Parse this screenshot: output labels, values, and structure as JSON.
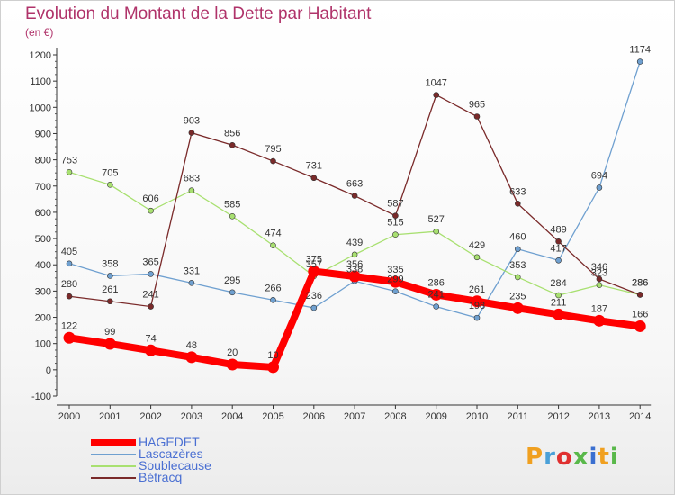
{
  "chart": {
    "title": "Evolution du Montant de la Dette par Habitant",
    "unit": "(en €)"
  },
  "logo": {
    "text": "Proxiti",
    "colors": [
      "#f0a020",
      "#4aa0d8",
      "#e03030",
      "#59b84a",
      "#3a6fd0",
      "#f0a020",
      "#59b84a"
    ]
  },
  "chart_data": {
    "type": "line",
    "title": "Evolution du Montant de la Dette par Habitant",
    "ylabel": "(en €)",
    "xlabel": "",
    "ylim": [
      -100,
      1200
    ],
    "yticks": [
      -100,
      0,
      100,
      200,
      300,
      400,
      500,
      600,
      700,
      800,
      900,
      1000,
      1100,
      1200
    ],
    "categories": [
      "2000",
      "2001",
      "2002",
      "2003",
      "2004",
      "2005",
      "2006",
      "2007",
      "2008",
      "2009",
      "2010",
      "2011",
      "2012",
      "2013",
      "2014"
    ],
    "grid": false,
    "legend_position": "bottom-left",
    "series": [
      {
        "name": "HAGEDET",
        "color": "#ff0000",
        "bold": true,
        "values": [
          122,
          99,
          74,
          48,
          20,
          10,
          375,
          356,
          335,
          286,
          261,
          235,
          211,
          187,
          166
        ],
        "labels": [
          "122",
          "99",
          "74",
          "48",
          "20",
          "10",
          "375",
          "356",
          "335",
          "286",
          "261",
          "235",
          "211",
          "187",
          "166"
        ]
      },
      {
        "name": "Lascazères",
        "color": "#6fa0d0",
        "values": [
          405,
          358,
          365,
          331,
          295,
          266,
          236,
          338,
          299,
          241,
          198,
          460,
          417,
          694,
          1174
        ],
        "labels": [
          "405",
          "358",
          "365",
          "331",
          "295",
          "266",
          "236",
          "338",
          "299",
          "241",
          "198",
          "460",
          "417",
          "694",
          "1174"
        ]
      },
      {
        "name": "Soublecause",
        "color": "#a8e070",
        "values": [
          753,
          705,
          606,
          683,
          585,
          474,
          357,
          439,
          515,
          527,
          429,
          353,
          284,
          323,
          286
        ],
        "labels": [
          "753",
          "705",
          "606",
          "683",
          "585",
          "474",
          "357",
          "439",
          "515",
          "527",
          "429",
          "353",
          "284",
          "323",
          "286"
        ]
      },
      {
        "name": "Bétracq",
        "color": "#7a2a2a",
        "values": [
          280,
          261,
          241,
          903,
          856,
          795,
          731,
          663,
          587,
          1047,
          965,
          633,
          489,
          346,
          286
        ],
        "labels": [
          "280",
          "261",
          "241",
          "903",
          "856",
          "795",
          "731",
          "663",
          "587",
          "1047",
          "965",
          "633",
          "489",
          "346",
          "286"
        ]
      }
    ]
  }
}
